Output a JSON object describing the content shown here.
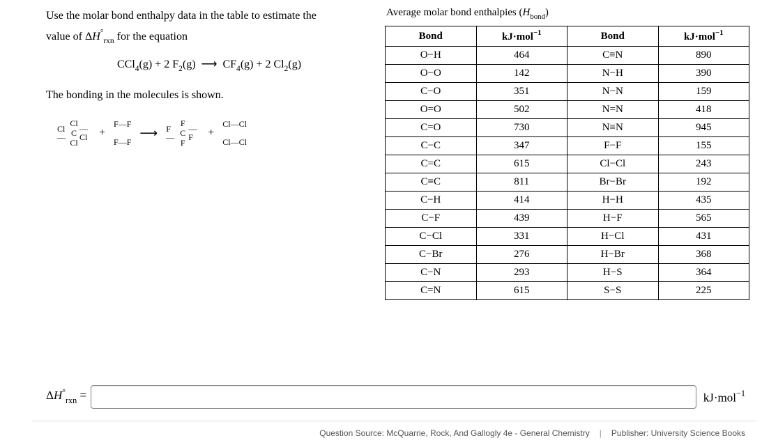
{
  "prompt": {
    "line1": "Use the molar bond enthalpy data in the table to estimate the",
    "line2_prefix": "value of Δ",
    "line2_mid": " for the equation",
    "eq_left": "CCl",
    "eq_left_sub": "4",
    "eq_left_phase": "(g) + 2 F",
    "eq_f2_sub": "2",
    "eq_f2_phase": "(g)",
    "eq_arrow": "⟶",
    "eq_right": "CF",
    "eq_right_sub": "4",
    "eq_right_phase": "(g) + 2 Cl",
    "eq_cl2_sub": "2",
    "eq_cl2_phase": "(g)",
    "line3": "The bonding in the molecules is shown."
  },
  "lewis": {
    "Cl": "Cl",
    "C": "C",
    "F": "F",
    "FF": "F—F",
    "ClCl": "Cl—Cl",
    "Cl_left": "Cl—",
    "Cl_right": "—Cl",
    "F_left": "F—",
    "F_right": "—F",
    "bar_v": "|",
    "plus": "+",
    "arrow": "⟶"
  },
  "table": {
    "title_prefix": "Average molar bond enthalpies (",
    "title_sym": "H",
    "title_sub": "bond",
    "title_suffix": ")",
    "head1": "Bond",
    "head2": "kJ·mol",
    "head2_sup": "−1",
    "rows": [
      {
        "b1": "O−H",
        "v1": "464",
        "b2": "C≡N",
        "v2": "890"
      },
      {
        "b1": "O−O",
        "v1": "142",
        "b2": "N−H",
        "v2": "390"
      },
      {
        "b1": "C−O",
        "v1": "351",
        "b2": "N−N",
        "v2": "159"
      },
      {
        "b1": "O=O",
        "v1": "502",
        "b2": "N=N",
        "v2": "418"
      },
      {
        "b1": "C=O",
        "v1": "730",
        "b2": "N≡N",
        "v2": "945"
      },
      {
        "b1": "C−C",
        "v1": "347",
        "b2": "F−F",
        "v2": "155"
      },
      {
        "b1": "C=C",
        "v1": "615",
        "b2": "Cl−Cl",
        "v2": "243"
      },
      {
        "b1": "C≡C",
        "v1": "811",
        "b2": "Br−Br",
        "v2": "192"
      },
      {
        "b1": "C−H",
        "v1": "414",
        "b2": "H−H",
        "v2": "435"
      },
      {
        "b1": "C−F",
        "v1": "439",
        "b2": "H−F",
        "v2": "565"
      },
      {
        "b1": "C−Cl",
        "v1": "331",
        "b2": "H−Cl",
        "v2": "431"
      },
      {
        "b1": "C−Br",
        "v1": "276",
        "b2": "H−Br",
        "v2": "368"
      },
      {
        "b1": "C−N",
        "v1": "293",
        "b2": "H−S",
        "v2": "364"
      },
      {
        "b1": "C=N",
        "v1": "615",
        "b2": "S−S",
        "v2": "225"
      }
    ]
  },
  "answer": {
    "label_prefix": "Δ",
    "label_H": "H",
    "label_rxn": "rxn",
    "label_eq": " =",
    "unit": "kJ·mol",
    "unit_sup": "−1",
    "value": ""
  },
  "footer": {
    "source_label": "Question Source:",
    "source": "McQuarrie, Rock, And Gallogly 4e - General Chemistry",
    "pub_label": "Publisher:",
    "pub": "University Science Books"
  }
}
